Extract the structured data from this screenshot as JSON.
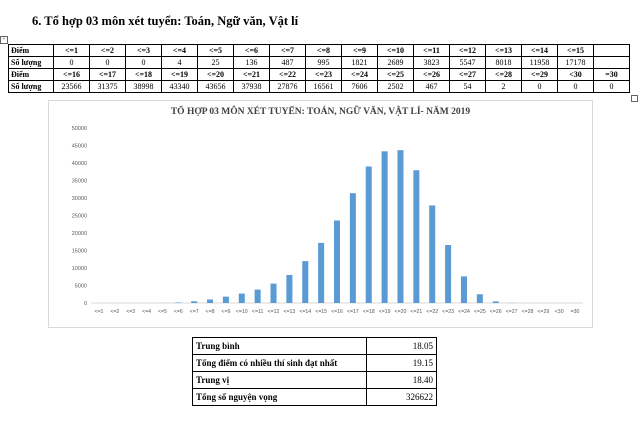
{
  "document": {
    "heading": "6. Tổ hợp 03 môn xét tuyển: Toán, Ngữ văn, Vật lí",
    "anchor_glyph": "+"
  },
  "score_table": {
    "rows": [
      {
        "label_header": "Điểm",
        "label_count": "Số lượng",
        "headers": [
          "<=1",
          "<=2",
          "<=3",
          "<=4",
          "<=5",
          "<=6",
          "<=7",
          "<=8",
          "<=9",
          "<=10",
          "<=11",
          "<=12",
          "<=13",
          "<=14",
          "<=15"
        ],
        "counts": [
          "0",
          "0",
          "0",
          "4",
          "25",
          "136",
          "487",
          "995",
          "1821",
          "2689",
          "3823",
          "5547",
          "8018",
          "11958",
          "17178"
        ]
      },
      {
        "label_header": "Điểm",
        "label_count": "Số lượng",
        "headers": [
          "<=16",
          "<=17",
          "<=18",
          "<=19",
          "<=20",
          "<=21",
          "<=22",
          "<=23",
          "<=24",
          "<=25",
          "<=26",
          "<=27",
          "<=28",
          "<=29",
          "<30",
          "=30"
        ],
        "counts": [
          "23566",
          "31375",
          "38998",
          "43340",
          "43656",
          "37938",
          "27876",
          "16561",
          "7606",
          "2502",
          "467",
          "54",
          "2",
          "0",
          "0",
          "0"
        ]
      }
    ]
  },
  "chart_data": {
    "type": "bar",
    "title": "TỔ HỢP 03 MÔN XÉT TUYỂN: TOÁN, NGỮ VĂN, VẬT LÍ- NĂM 2019",
    "categories": [
      "<=1",
      "<=2",
      "<=3",
      "<=4",
      "<=5",
      "<=6",
      "<=7",
      "<=8",
      "<=9",
      "<=10",
      "<=11",
      "<=12",
      "<=13",
      "<=14",
      "<=15",
      "<=16",
      "<=17",
      "<=18",
      "<=19",
      "<=20",
      "<=21",
      "<=22",
      "<=23",
      "<=24",
      "<=25",
      "<=26",
      "<=27",
      "<=28",
      "<=29",
      "<30",
      "=30"
    ],
    "values": [
      0,
      0,
      0,
      4,
      25,
      136,
      487,
      995,
      1821,
      2689,
      3823,
      5547,
      8018,
      11958,
      17178,
      23566,
      31375,
      38998,
      43340,
      43656,
      37938,
      27876,
      16561,
      7606,
      2502,
      467,
      54,
      2,
      0,
      0,
      0
    ],
    "yticks": [
      "0",
      "5000",
      "10000",
      "15000",
      "20000",
      "25000",
      "30000",
      "35000",
      "40000",
      "45000",
      "50000"
    ],
    "ylim": [
      0,
      50000
    ],
    "grid": false,
    "legend": "none",
    "bar_color": "#5b9bd5",
    "xlabel": "",
    "ylabel": ""
  },
  "stats": [
    {
      "label": "Trung bình",
      "value": "18.05"
    },
    {
      "label": "Tổng điểm có nhiều thí sinh đạt nhất",
      "value": "19.15"
    },
    {
      "label": "Trung vị",
      "value": "18.40"
    },
    {
      "label": "Tổng số nguyện vọng",
      "value": "326622"
    }
  ]
}
